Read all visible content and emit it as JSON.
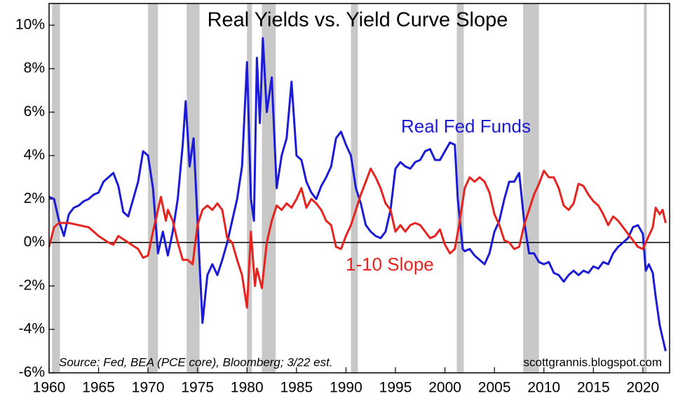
{
  "chart_data": {
    "type": "line",
    "title": "Real Yields vs. Yield Curve Slope",
    "source": "Source: Fed, BEA (PCE core), Bloomberg; 3/22 est.",
    "credit": "scottgrannis.blogspot.com",
    "xlim": [
      1960,
      2022.7
    ],
    "xticks": [
      1960,
      1965,
      1970,
      1975,
      1980,
      1985,
      1990,
      1995,
      2000,
      2005,
      2010,
      2015,
      2020
    ],
    "ylim": [
      -6,
      11
    ],
    "yticks": [
      {
        "value": -6,
        "label": "-6%"
      },
      {
        "value": -4,
        "label": "-4%"
      },
      {
        "value": -2,
        "label": "-2%"
      },
      {
        "value": 0,
        "label": "0%"
      },
      {
        "value": 2,
        "label": "2%"
      },
      {
        "value": 4,
        "label": "4%"
      },
      {
        "value": 6,
        "label": "6%"
      },
      {
        "value": 8,
        "label": "8%"
      },
      {
        "value": 10,
        "label": "10%"
      }
    ],
    "hline": 0,
    "recession_color": "#c8c8c8",
    "recessions": [
      [
        1960.3,
        1961.1
      ],
      [
        1970.0,
        1971.0
      ],
      [
        1973.9,
        1975.2
      ],
      [
        1980.0,
        1980.5
      ],
      [
        1981.5,
        1982.9
      ],
      [
        1990.5,
        1991.2
      ],
      [
        2001.2,
        2001.9
      ],
      [
        2007.9,
        2009.5
      ],
      [
        2020.1,
        2020.4
      ]
    ],
    "series": [
      {
        "name": "Real Fed Funds",
        "color": "#1b1bd6",
        "x": [
          1960,
          1960.5,
          1961,
          1961.5,
          1962,
          1962.5,
          1963,
          1963.5,
          1964,
          1964.5,
          1965,
          1965.5,
          1966,
          1966.5,
          1967,
          1967.5,
          1968,
          1968.5,
          1969,
          1969.5,
          1970,
          1970.5,
          1971,
          1971.5,
          1972,
          1972.5,
          1973,
          1973.5,
          1973.8,
          1974.2,
          1974.6,
          1975,
          1975.5,
          1976,
          1976.5,
          1977,
          1977.5,
          1978,
          1978.5,
          1979,
          1979.5,
          1980,
          1980.4,
          1980.7,
          1981,
          1981.3,
          1981.6,
          1982,
          1982.5,
          1983,
          1983.5,
          1984,
          1984.5,
          1985,
          1985.5,
          1986,
          1986.5,
          1987,
          1987.5,
          1988,
          1988.5,
          1989,
          1989.5,
          1990,
          1990.5,
          1991,
          1991.5,
          1992,
          1992.5,
          1993,
          1993.5,
          1994,
          1994.5,
          1995,
          1995.5,
          1996,
          1996.5,
          1997,
          1997.5,
          1998,
          1998.5,
          1999,
          1999.5,
          2000,
          2000.5,
          2001,
          2001.3,
          2001.8,
          2002,
          2002.5,
          2003,
          2003.5,
          2004,
          2004.5,
          2005,
          2005.5,
          2006,
          2006.5,
          2007,
          2007.5,
          2008,
          2008.5,
          2009,
          2009.5,
          2010,
          2010.5,
          2011,
          2011.5,
          2012,
          2012.5,
          2013,
          2013.5,
          2014,
          2014.5,
          2015,
          2015.5,
          2016,
          2016.5,
          2017,
          2017.5,
          2018,
          2018.5,
          2019,
          2019.5,
          2020,
          2020.3,
          2020.6,
          2021,
          2021.3,
          2021.7,
          2022,
          2022.3
        ],
        "values": [
          2.1,
          2.0,
          1.0,
          0.3,
          1.3,
          1.6,
          1.7,
          1.9,
          2.0,
          2.2,
          2.3,
          2.8,
          3.0,
          3.2,
          2.6,
          1.4,
          1.2,
          2.0,
          2.8,
          4.2,
          4.0,
          2.5,
          -0.5,
          0.5,
          -0.6,
          0.5,
          2.0,
          4.5,
          6.5,
          3.5,
          4.8,
          1.0,
          -3.7,
          -1.5,
          -1.0,
          -1.5,
          -0.8,
          0.0,
          1.0,
          2.0,
          3.5,
          8.3,
          2.0,
          1.0,
          8.5,
          5.5,
          9.4,
          6.0,
          7.6,
          2.5,
          4.0,
          4.8,
          7.4,
          4.0,
          3.8,
          2.8,
          2.3,
          2.0,
          2.6,
          3.0,
          3.5,
          4.8,
          5.1,
          4.5,
          4.0,
          2.5,
          1.8,
          0.8,
          0.5,
          0.3,
          0.2,
          0.5,
          1.5,
          3.4,
          3.7,
          3.5,
          3.4,
          3.7,
          3.8,
          4.2,
          4.3,
          3.8,
          3.8,
          4.2,
          4.6,
          4.5,
          2.0,
          -0.3,
          -0.4,
          -0.3,
          -0.6,
          -0.8,
          -1.0,
          -0.5,
          0.5,
          1.0,
          2.0,
          2.8,
          2.8,
          3.2,
          1.0,
          -0.5,
          -0.5,
          -0.9,
          -1.0,
          -0.9,
          -1.4,
          -1.5,
          -1.8,
          -1.5,
          -1.3,
          -1.5,
          -1.3,
          -1.4,
          -1.1,
          -1.2,
          -0.9,
          -1.0,
          -0.5,
          -0.2,
          0.0,
          0.2,
          0.7,
          0.8,
          0.4,
          -1.3,
          -1.0,
          -1.4,
          -2.5,
          -3.8,
          -4.4,
          -5.0
        ]
      },
      {
        "name": "1-10 Slope",
        "color": "#e52420",
        "x": [
          1960,
          1960.5,
          1961,
          1962,
          1963,
          1964,
          1965,
          1966,
          1966.5,
          1967,
          1968,
          1969,
          1969.5,
          1970,
          1970.5,
          1971,
          1971.3,
          1971.8,
          1972,
          1972.5,
          1973,
          1973.5,
          1974,
          1974.5,
          1975,
          1975.5,
          1976,
          1976.5,
          1977,
          1977.5,
          1978,
          1978.5,
          1979,
          1979.5,
          1980,
          1980.4,
          1980.8,
          1981,
          1981.5,
          1982,
          1982.5,
          1983,
          1983.5,
          1984,
          1984.5,
          1985,
          1985.5,
          1986,
          1986.5,
          1987,
          1987.5,
          1988,
          1988.5,
          1989,
          1989.5,
          1990,
          1990.5,
          1991,
          1991.5,
          1992,
          1992.5,
          1993,
          1993.5,
          1994,
          1994.5,
          1995,
          1995.5,
          1996,
          1996.5,
          1997,
          1997.5,
          1998,
          1998.5,
          1999,
          1999.5,
          2000,
          2000.5,
          2001,
          2001.5,
          2002,
          2002.5,
          2003,
          2003.5,
          2004,
          2004.5,
          2005,
          2005.5,
          2006,
          2006.5,
          2007,
          2007.5,
          2008,
          2008.5,
          2009,
          2009.5,
          2010,
          2010.5,
          2011,
          2011.5,
          2012,
          2012.5,
          2013,
          2013.5,
          2014,
          2014.5,
          2015,
          2015.5,
          2016,
          2016.5,
          2017,
          2017.5,
          2018,
          2018.5,
          2019,
          2019.5,
          2020,
          2020.5,
          2021,
          2021.3,
          2021.7,
          2022,
          2022.3
        ],
        "values": [
          -0.2,
          0.7,
          0.9,
          0.9,
          0.8,
          0.7,
          0.3,
          0.0,
          -0.1,
          0.3,
          0.0,
          -0.3,
          -0.7,
          -0.6,
          0.5,
          1.5,
          2.1,
          1.0,
          1.5,
          1.0,
          0.0,
          -0.8,
          -0.8,
          -1.0,
          0.8,
          1.5,
          1.7,
          1.5,
          1.8,
          1.5,
          0.2,
          0.0,
          -0.8,
          -1.5,
          -3.0,
          0.5,
          -2.0,
          -1.2,
          -2.1,
          0.0,
          1.0,
          1.7,
          1.5,
          1.8,
          1.6,
          2.0,
          2.5,
          1.6,
          2.0,
          1.8,
          1.5,
          1.0,
          0.8,
          -0.2,
          -0.3,
          0.3,
          0.8,
          1.5,
          2.2,
          2.8,
          3.4,
          3.0,
          2.5,
          1.8,
          1.5,
          0.5,
          0.8,
          0.5,
          0.8,
          0.9,
          0.8,
          0.5,
          0.2,
          0.3,
          0.6,
          -0.1,
          -0.5,
          -0.3,
          1.0,
          2.5,
          3.0,
          2.8,
          3.0,
          2.8,
          2.3,
          1.3,
          0.8,
          0.1,
          0.0,
          -0.3,
          -0.2,
          0.8,
          1.5,
          2.2,
          2.7,
          3.3,
          3.0,
          3.0,
          2.5,
          1.7,
          1.5,
          1.8,
          2.7,
          2.6,
          2.2,
          1.9,
          1.7,
          1.3,
          0.8,
          1.2,
          1.0,
          0.7,
          0.4,
          0.1,
          -0.2,
          -0.3,
          0.2,
          0.7,
          1.6,
          1.3,
          1.5,
          0.9
        ]
      }
    ]
  }
}
